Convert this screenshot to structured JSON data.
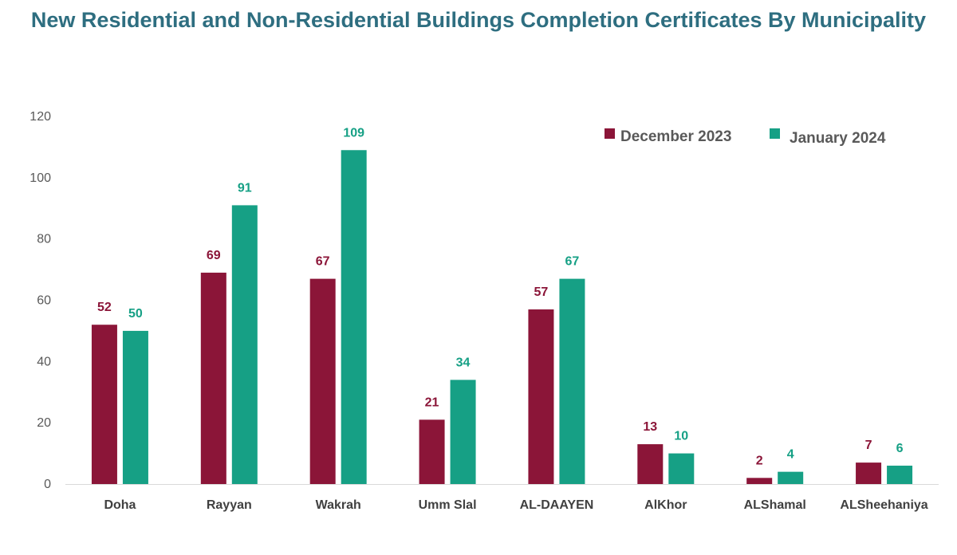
{
  "chart_data": {
    "type": "bar",
    "title": "New Residential and Non-Residential Buildings Completion Certificates By Municipality",
    "xlabel": "",
    "ylabel": "",
    "ylim": [
      0,
      120
    ],
    "yticks": [
      0,
      20,
      40,
      60,
      80,
      100,
      120
    ],
    "grid": false,
    "legend_position": "top-right",
    "categories": [
      "Doha",
      "Rayyan",
      "Wakrah",
      "Umm Slal",
      "AL-DAAYEN",
      "AlKhor",
      "ALShamal",
      "ALSheehaniya"
    ],
    "series": [
      {
        "name": "December 2023",
        "color": "#8B1538",
        "values": [
          52,
          69,
          67,
          21,
          57,
          13,
          2,
          7
        ]
      },
      {
        "name": "January 2024",
        "color": "#16A085",
        "values": [
          50,
          91,
          109,
          34,
          67,
          10,
          4,
          6
        ]
      }
    ]
  }
}
